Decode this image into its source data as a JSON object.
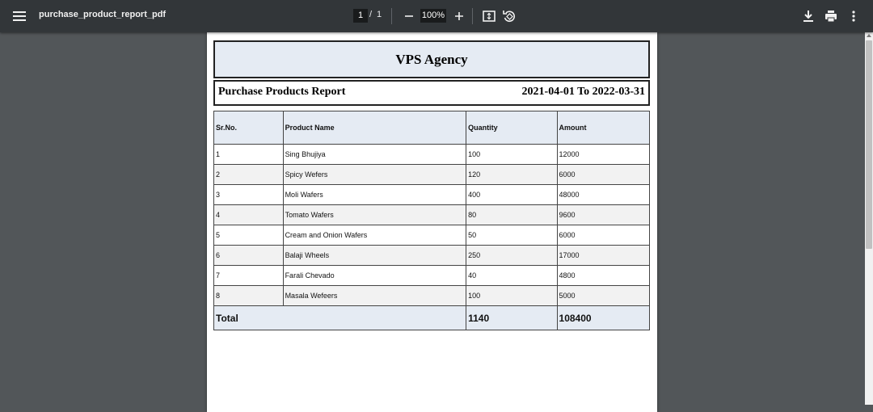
{
  "toolbar": {
    "file_name": "purchase_product_report_pdf",
    "current_page": "1",
    "page_separator": "/",
    "total_pages": "1",
    "zoom": "100%",
    "icons": [
      "menu-icon",
      "zoom-out-icon",
      "zoom-in-icon",
      "fit-to-page-icon",
      "rotate-icon",
      "download-icon",
      "print-icon",
      "more-vert-icon"
    ]
  },
  "document": {
    "company": "VPS Agency",
    "report_title": "Purchase Products Report",
    "date_range": "2021-04-01 To 2022-03-31",
    "table": {
      "headers": [
        "Sr.No.",
        "Product Name",
        "Quantity",
        "Amount"
      ],
      "rows": [
        [
          "1",
          "Sing Bhujiya",
          "100",
          "12000"
        ],
        [
          "2",
          "Spicy Wefers",
          "120",
          "6000"
        ],
        [
          "3",
          "Moli Wafers",
          "400",
          "48000"
        ],
        [
          "4",
          "Tomato Wafers",
          "80",
          "9600"
        ],
        [
          "5",
          "Cream and Onion Wafers",
          "50",
          "6000"
        ],
        [
          "6",
          "Balaji Wheels",
          "250",
          "17000"
        ],
        [
          "7",
          "Farali Chevado",
          "40",
          "4800"
        ],
        [
          "8",
          "Masala Wefeers",
          "100",
          "5000"
        ]
      ],
      "total": {
        "label": "Total",
        "quantity": "1140",
        "amount": "108400"
      }
    }
  },
  "colors": {
    "toolbar_bg": "#323639",
    "viewer_bg": "#525659",
    "header_fill": "#e5ebf3",
    "alt_row": "#f2f2f2"
  }
}
